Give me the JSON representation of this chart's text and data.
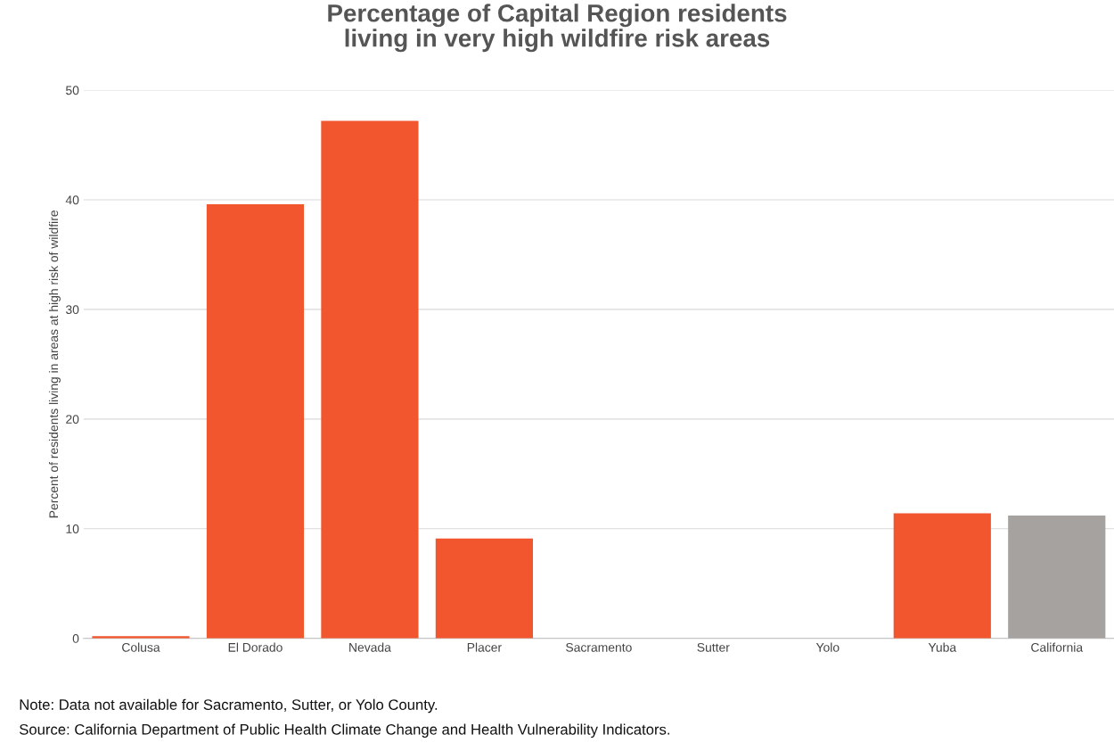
{
  "chart_data": {
    "type": "bar",
    "title": "Percentage of Capital Region residents\nliving in very high wildfire risk areas",
    "ylabel": "Percent of residents living in areas at high risk of wildfire",
    "categories": [
      "Colusa",
      "El Dorado",
      "Nevada",
      "Placer",
      "Sacramento",
      "Sutter",
      "Yolo",
      "Yuba",
      "California"
    ],
    "values": [
      0.2,
      39.6,
      47.2,
      9.1,
      null,
      null,
      null,
      11.4,
      11.2
    ],
    "colors": [
      "#f1562f",
      "#f1562f",
      "#f1562f",
      "#f1562f",
      "#f1562f",
      "#f1562f",
      "#f1562f",
      "#f1562f",
      "#a5a29f"
    ],
    "ylim": [
      0,
      50
    ],
    "yticks": [
      0,
      10,
      20,
      30,
      40,
      50
    ],
    "grid": "y",
    "legend": false,
    "annotations": [
      "Note: Data not available for Sacramento, Sutter, or Yolo County.",
      "Source: California Department of Public Health Climate Change and Health Vulnerability Indicators."
    ]
  }
}
